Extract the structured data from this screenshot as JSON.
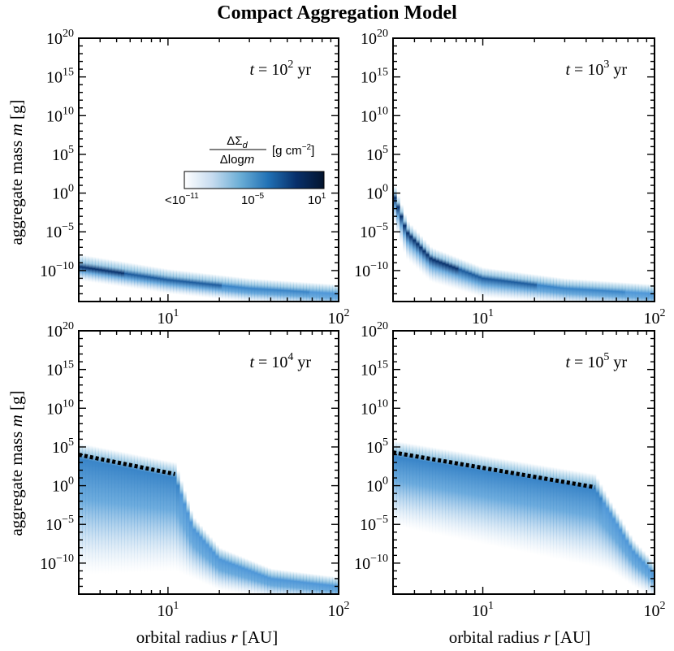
{
  "chart_data": {
    "title": "Compact Aggregation Model",
    "xlabel_text": "orbital radius",
    "xlabel_var": "r",
    "xlabel_unit": "[AU]",
    "ylabel_text": "aggregate mass",
    "ylabel_var": "m",
    "ylabel_unit": "[g]",
    "x_scale": "log",
    "y_scale": "log",
    "xlim": [
      3,
      100
    ],
    "ylim_exp": [
      -14,
      20
    ],
    "x_tick_labels": [
      {
        "base": "10",
        "exp": "1",
        "value": 10
      },
      {
        "base": "10",
        "exp": "2",
        "value": 100
      }
    ],
    "y_tick_labels": [
      {
        "base": "10",
        "exp": "20",
        "value": 20
      },
      {
        "base": "10",
        "exp": "15",
        "value": 15
      },
      {
        "base": "10",
        "exp": "10",
        "value": 10
      },
      {
        "base": "10",
        "exp": "5",
        "value": 5
      },
      {
        "base": "10",
        "exp": "0",
        "value": 0
      },
      {
        "base": "10",
        "exp": "−5",
        "value": -5
      },
      {
        "base": "10",
        "exp": "−10",
        "value": -10
      }
    ],
    "colorbar": {
      "numerator": "ΔΣ",
      "numerator_sub": "d",
      "denominator": "Δlog",
      "denominator_var": "m",
      "unit_prefix": "[g cm",
      "unit_exp": "−2",
      "unit_suffix": "]",
      "labels": [
        {
          "base": "<10",
          "exp": "−11"
        },
        {
          "base": "10",
          "exp": "−5"
        },
        {
          "base": "10",
          "exp": "1"
        }
      ],
      "colors": [
        "#ffffff",
        "#c6dbef",
        "#6baed6",
        "#2171b5",
        "#08306b",
        "#03142e"
      ]
    },
    "panels": [
      {
        "t_var": "t",
        "t_eq": "=",
        "t_base": "10",
        "t_exp": "2",
        "t_unit": "yr",
        "ridge": [
          [
            3,
            -9.5
          ],
          [
            10,
            -11.2
          ],
          [
            30,
            -12.3
          ],
          [
            100,
            -13
          ]
        ],
        "width_up": [
          1.6,
          1.4,
          1.3,
          1.2
        ],
        "width_down": [
          1.8,
          1.8,
          1.8,
          1.8
        ],
        "intensity": [
          0.95,
          0.85,
          0.7,
          0.55
        ],
        "frag_line": []
      },
      {
        "t_var": "t",
        "t_eq": "=",
        "t_base": "10",
        "t_exp": "3",
        "t_unit": "yr",
        "ridge": [
          [
            3,
            0
          ],
          [
            3.6,
            -5
          ],
          [
            5,
            -8.5
          ],
          [
            10,
            -11
          ],
          [
            30,
            -12.3
          ],
          [
            100,
            -13
          ]
        ],
        "width_up": [
          1.5,
          1.5,
          1.5,
          1.4,
          1.3,
          1.2
        ],
        "width_down": [
          3.5,
          3.5,
          3.0,
          2.5,
          2.0,
          1.8
        ],
        "intensity": [
          1.0,
          1.0,
          0.95,
          0.85,
          0.7,
          0.55
        ],
        "frag_line": []
      },
      {
        "t_var": "t",
        "t_eq": "=",
        "t_base": "10",
        "t_exp": "4",
        "t_unit": "yr",
        "ridge": [
          [
            3,
            3.5
          ],
          [
            11,
            1
          ],
          [
            14,
            -5.5
          ],
          [
            20,
            -9.5
          ],
          [
            40,
            -12
          ],
          [
            100,
            -13
          ]
        ],
        "width_up": [
          2.0,
          2.0,
          1.5,
          1.5,
          1.3,
          1.2
        ],
        "width_down": [
          15.0,
          12.0,
          6.5,
          4.0,
          2.5,
          2.0
        ],
        "intensity": [
          0.7,
          0.62,
          0.55,
          0.5,
          0.42,
          0.35
        ],
        "frag_line": [
          [
            3,
            4
          ],
          [
            11,
            1.5
          ]
        ]
      },
      {
        "t_var": "t",
        "t_eq": "=",
        "t_base": "10",
        "t_exp": "5",
        "t_unit": "yr",
        "ridge": [
          [
            3,
            3.8
          ],
          [
            45,
            -0.5
          ],
          [
            55,
            -3.5
          ],
          [
            75,
            -8.5
          ],
          [
            100,
            -11.5
          ]
        ],
        "width_up": [
          2.0,
          2.0,
          1.5,
          1.5,
          1.5
        ],
        "width_down": [
          9.0,
          10.0,
          7.5,
          4.5,
          3.0
        ],
        "intensity": [
          0.72,
          0.62,
          0.58,
          0.5,
          0.45
        ],
        "frag_line": [
          [
            3,
            4.3
          ],
          [
            45,
            -0.2
          ]
        ]
      }
    ]
  }
}
